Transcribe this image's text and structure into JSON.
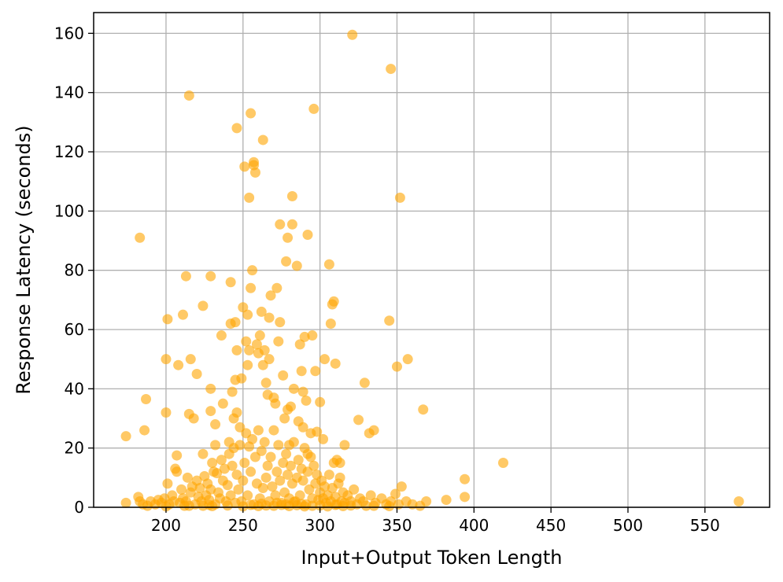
{
  "chart_data": {
    "type": "scatter",
    "title": "",
    "xlabel": "Input+Output Token Length",
    "ylabel": "Response Latency (seconds)",
    "xlim": [
      153,
      592
    ],
    "ylim": [
      0,
      167
    ],
    "xticks": [
      200,
      250,
      300,
      350,
      400,
      450,
      500,
      550
    ],
    "yticks": [
      0,
      20,
      40,
      60,
      80,
      100,
      120,
      140,
      160
    ],
    "grid": true,
    "legend": "none",
    "marker_color": "#FFA500",
    "marker_alpha": 0.6,
    "points": [
      [
        174,
        24
      ],
      [
        183,
        91
      ],
      [
        186,
        26
      ],
      [
        187,
        36.5
      ],
      [
        200,
        50
      ],
      [
        200,
        32
      ],
      [
        201,
        63.5
      ],
      [
        208,
        48
      ],
      [
        211,
        65
      ],
      [
        213,
        78
      ],
      [
        215,
        139
      ],
      [
        216,
        50
      ],
      [
        215,
        31.5
      ],
      [
        218,
        30
      ],
      [
        220,
        45
      ],
      [
        224,
        18
      ],
      [
        224,
        68
      ],
      [
        229,
        78
      ],
      [
        229,
        40
      ],
      [
        229,
        32.5
      ],
      [
        232,
        28
      ],
      [
        232,
        21
      ],
      [
        236,
        58
      ],
      [
        237,
        35
      ],
      [
        241,
        22
      ],
      [
        242,
        62
      ],
      [
        242,
        76
      ],
      [
        243,
        39
      ],
      [
        244,
        30
      ],
      [
        245,
        62.5
      ],
      [
        245,
        43
      ],
      [
        246,
        53
      ],
      [
        246,
        128
      ],
      [
        246,
        32
      ],
      [
        248,
        27
      ],
      [
        249,
        43.5
      ],
      [
        250,
        67.5
      ],
      [
        251,
        115
      ],
      [
        252,
        56
      ],
      [
        253,
        65
      ],
      [
        253,
        48
      ],
      [
        254,
        104.5
      ],
      [
        254,
        53
      ],
      [
        255,
        133
      ],
      [
        255,
        74
      ],
      [
        256,
        80
      ],
      [
        257,
        116.5
      ],
      [
        257,
        115.5
      ],
      [
        258,
        113
      ],
      [
        259,
        55
      ],
      [
        260,
        52
      ],
      [
        261,
        58
      ],
      [
        262,
        66
      ],
      [
        263,
        124
      ],
      [
        263,
        48
      ],
      [
        264,
        53
      ],
      [
        265,
        42
      ],
      [
        266,
        38
      ],
      [
        267,
        64
      ],
      [
        267,
        50
      ],
      [
        268,
        71.5
      ],
      [
        270,
        37
      ],
      [
        271,
        35
      ],
      [
        272,
        74
      ],
      [
        273,
        56
      ],
      [
        274,
        95.5
      ],
      [
        274,
        62.5
      ],
      [
        276,
        44.5
      ],
      [
        277,
        30
      ],
      [
        278,
        83
      ],
      [
        279,
        91
      ],
      [
        279,
        33
      ],
      [
        280,
        21
      ],
      [
        281,
        34
      ],
      [
        282,
        95.5
      ],
      [
        282,
        105
      ],
      [
        283,
        40
      ],
      [
        285,
        81.5
      ],
      [
        286,
        29
      ],
      [
        287,
        55
      ],
      [
        288,
        46
      ],
      [
        289,
        27
      ],
      [
        289,
        39
      ],
      [
        290,
        57.5
      ],
      [
        291,
        36
      ],
      [
        292,
        92
      ],
      [
        292,
        18
      ],
      [
        294,
        25
      ],
      [
        295,
        58
      ],
      [
        296,
        134.5
      ],
      [
        297,
        46
      ],
      [
        298,
        25.5
      ],
      [
        300,
        35.5
      ],
      [
        302,
        23
      ],
      [
        303,
        50
      ],
      [
        306,
        82
      ],
      [
        307,
        62
      ],
      [
        308,
        68.5
      ],
      [
        309,
        69.5
      ],
      [
        310,
        48.5
      ],
      [
        311,
        16
      ],
      [
        313,
        15
      ],
      [
        316,
        21
      ],
      [
        325,
        29.5
      ],
      [
        329,
        42
      ],
      [
        332,
        25
      ],
      [
        335,
        26
      ],
      [
        345,
        63
      ],
      [
        346,
        148
      ],
      [
        350,
        47.5
      ],
      [
        352,
        104.5
      ],
      [
        357,
        50
      ],
      [
        367,
        33
      ],
      [
        321,
        159.5
      ],
      [
        394,
        9.5
      ],
      [
        419,
        15
      ],
      [
        572,
        2
      ],
      [
        174,
        1.5
      ],
      [
        182,
        3.5
      ],
      [
        183,
        2
      ],
      [
        185,
        1
      ],
      [
        188,
        0.5
      ],
      [
        190,
        2
      ],
      [
        193,
        1
      ],
      [
        195,
        2.5
      ],
      [
        197,
        1.5
      ],
      [
        199,
        3
      ],
      [
        201,
        8
      ],
      [
        202,
        1
      ],
      [
        204,
        4
      ],
      [
        205,
        2
      ],
      [
        206,
        13
      ],
      [
        207,
        17.5
      ],
      [
        207,
        12
      ],
      [
        209,
        1.5
      ],
      [
        210,
        6
      ],
      [
        211,
        3
      ],
      [
        212,
        0.5
      ],
      [
        213,
        2
      ],
      [
        214,
        10
      ],
      [
        216,
        5
      ],
      [
        217,
        7
      ],
      [
        219,
        1
      ],
      [
        220,
        9
      ],
      [
        221,
        3.5
      ],
      [
        222,
        6.5
      ],
      [
        223,
        2
      ],
      [
        224,
        0.5
      ],
      [
        225,
        10.5
      ],
      [
        226,
        4
      ],
      [
        227,
        8
      ],
      [
        228,
        2.5
      ],
      [
        229,
        6
      ],
      [
        230,
        15
      ],
      [
        231,
        12
      ],
      [
        232,
        1
      ],
      [
        233,
        11.5
      ],
      [
        234,
        5
      ],
      [
        235,
        3
      ],
      [
        236,
        16
      ],
      [
        237,
        9
      ],
      [
        238,
        13
      ],
      [
        239,
        2
      ],
      [
        240,
        7.5
      ],
      [
        241,
        18
      ],
      [
        242,
        4
      ],
      [
        243,
        14
      ],
      [
        244,
        20
      ],
      [
        245,
        1.5
      ],
      [
        246,
        11
      ],
      [
        247,
        6
      ],
      [
        248,
        21
      ],
      [
        249,
        2
      ],
      [
        250,
        9
      ],
      [
        251,
        15
      ],
      [
        252,
        25
      ],
      [
        253,
        4
      ],
      [
        254,
        20.5
      ],
      [
        255,
        12
      ],
      [
        256,
        23
      ],
      [
        257,
        1
      ],
      [
        258,
        17
      ],
      [
        259,
        8
      ],
      [
        260,
        26
      ],
      [
        261,
        3
      ],
      [
        262,
        19
      ],
      [
        263,
        6.5
      ],
      [
        264,
        22
      ],
      [
        265,
        10
      ],
      [
        266,
        14
      ],
      [
        267,
        2
      ],
      [
        268,
        17
      ],
      [
        269,
        7
      ],
      [
        270,
        26
      ],
      [
        271,
        4
      ],
      [
        272,
        12
      ],
      [
        273,
        21
      ],
      [
        274,
        9
      ],
      [
        275,
        1.5
      ],
      [
        276,
        15
      ],
      [
        277,
        5
      ],
      [
        278,
        18
      ],
      [
        279,
        11
      ],
      [
        280,
        3
      ],
      [
        281,
        14
      ],
      [
        282,
        8
      ],
      [
        283,
        22
      ],
      [
        284,
        2
      ],
      [
        285,
        10
      ],
      [
        286,
        16
      ],
      [
        287,
        4
      ],
      [
        288,
        13
      ],
      [
        289,
        9
      ],
      [
        290,
        20
      ],
      [
        291,
        1
      ],
      [
        292,
        12
      ],
      [
        293,
        6
      ],
      [
        294,
        17
      ],
      [
        295,
        3
      ],
      [
        296,
        14
      ],
      [
        297,
        8
      ],
      [
        298,
        11
      ],
      [
        299,
        2.5
      ],
      [
        300,
        5
      ],
      [
        301,
        9
      ],
      [
        302,
        3
      ],
      [
        303,
        7
      ],
      [
        304,
        1.5
      ],
      [
        305,
        4
      ],
      [
        306,
        11
      ],
      [
        307,
        2
      ],
      [
        308,
        6.5
      ],
      [
        309,
        15
      ],
      [
        310,
        3.5
      ],
      [
        311,
        1
      ],
      [
        312,
        8
      ],
      [
        313,
        10
      ],
      [
        314,
        2
      ],
      [
        315,
        5
      ],
      [
        316,
        1.5
      ],
      [
        318,
        4
      ],
      [
        320,
        2
      ],
      [
        322,
        6
      ],
      [
        324,
        1
      ],
      [
        326,
        3
      ],
      [
        328,
        2
      ],
      [
        330,
        0.5
      ],
      [
        333,
        4
      ],
      [
        336,
        1.5
      ],
      [
        340,
        3
      ],
      [
        343,
        1
      ],
      [
        346,
        2
      ],
      [
        349,
        4.5
      ],
      [
        351,
        1
      ],
      [
        353,
        7
      ],
      [
        356,
        2
      ],
      [
        360,
        1
      ],
      [
        365,
        0.5
      ],
      [
        369,
        2
      ],
      [
        382,
        2.5
      ],
      [
        394,
        3.5
      ],
      [
        200,
        0.3
      ],
      [
        215,
        0.5
      ],
      [
        230,
        0.4
      ],
      [
        240,
        0.6
      ],
      [
        250,
        0.3
      ],
      [
        255,
        0.8
      ],
      [
        260,
        0.4
      ],
      [
        265,
        0.6
      ],
      [
        270,
        0.5
      ],
      [
        275,
        0.8
      ],
      [
        280,
        0.4
      ],
      [
        285,
        0.7
      ],
      [
        290,
        0.3
      ],
      [
        295,
        0.5
      ],
      [
        300,
        0.6
      ],
      [
        305,
        0.3
      ],
      [
        310,
        0.8
      ],
      [
        315,
        0.4
      ],
      [
        320,
        0.6
      ],
      [
        335,
        0.5
      ],
      [
        345,
        0.4
      ],
      [
        228,
        0.8
      ],
      [
        262,
        1.2
      ],
      [
        272,
        1.5
      ],
      [
        278,
        1.0
      ],
      [
        283,
        1.8
      ],
      [
        288,
        1.1
      ]
    ]
  }
}
